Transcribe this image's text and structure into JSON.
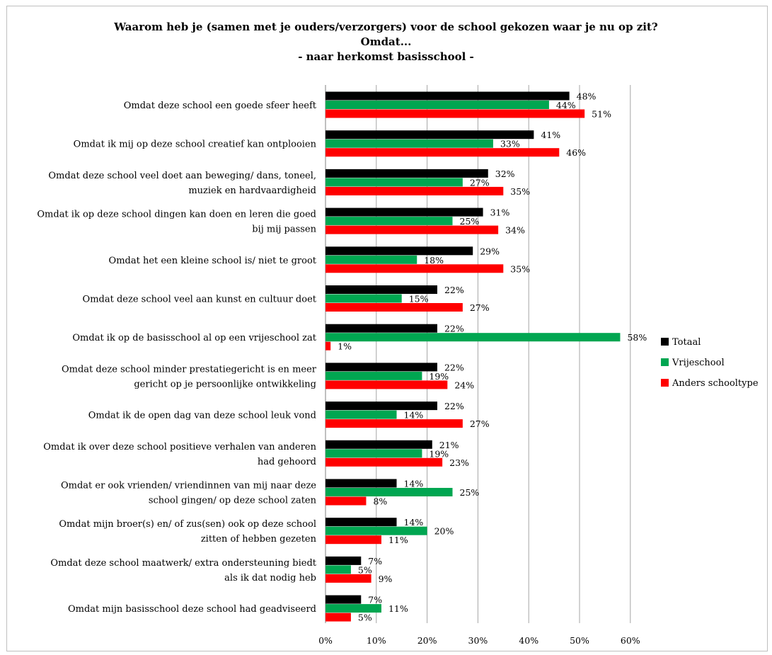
{
  "chart_data": {
    "type": "bar",
    "orientation": "horizontal",
    "title": "Waarom heb je (samen met je ouders/verzorgers) voor de school gekozen waar je nu op zit?",
    "subtitle": [
      "Omdat...",
      "- naar herkomst basisschool -"
    ],
    "categories": [
      "Omdat deze school een goede sfeer heeft",
      "Omdat ik mij op deze school creatief kan ontplooien",
      "Omdat deze school veel doet aan beweging/ dans, toneel, muziek en hardvaardigheid",
      "Omdat ik op deze school dingen kan doen en leren die goed bij mij passen",
      "Omdat het een kleine school is/ niet te groot",
      "Omdat deze school veel aan kunst en cultuur doet",
      "Omdat ik op de basisschool al op een vrijeschool zat",
      "Omdat deze school minder prestatiegericht is en meer gericht op je persoonlijke ontwikkeling",
      "Omdat ik de open dag van deze school leuk vond",
      "Omdat ik over deze school positieve verhalen van anderen had gehoord",
      "Omdat er ook vrienden/ vriendinnen van mij naar deze school gingen/ op deze school zaten",
      "Omdat mijn broer(s) en/ of zus(sen) ook op deze school zitten of hebben gezeten",
      "Omdat deze school maatwerk/ extra ondersteuning biedt als ik dat nodig heb",
      "Omdat mijn basisschool deze school had geadviseerd"
    ],
    "category_lines": [
      [
        "Omdat deze school een goede sfeer heeft"
      ],
      [
        "Omdat ik mij op deze school creatief kan ontplooien"
      ],
      [
        "Omdat deze school veel doet aan beweging/ dans, toneel,",
        "muziek en hardvaardigheid"
      ],
      [
        "Omdat ik op deze school dingen kan doen en leren die goed",
        "bij mij passen"
      ],
      [
        "Omdat het een kleine school is/ niet te groot"
      ],
      [
        "Omdat deze school veel aan kunst en cultuur doet"
      ],
      [
        "Omdat ik op de basisschool al op een vrijeschool zat"
      ],
      [
        "Omdat deze school minder prestatiegericht is en meer",
        "gericht op je persoonlijke ontwikkeling"
      ],
      [
        "Omdat ik de open dag van deze school leuk vond"
      ],
      [
        "Omdat ik over deze school positieve verhalen van anderen",
        "had gehoord"
      ],
      [
        "Omdat er ook vrienden/ vriendinnen van mij naar deze",
        "school gingen/ op deze school zaten"
      ],
      [
        "Omdat mijn broer(s) en/ of zus(sen) ook op deze school",
        "zitten of hebben gezeten"
      ],
      [
        "Omdat deze school maatwerk/ extra ondersteuning biedt",
        "als ik dat nodig heb"
      ],
      [
        "Omdat mijn basisschool deze school had geadviseerd"
      ]
    ],
    "series": [
      {
        "name": "Totaal",
        "color": "#000000",
        "values": [
          48,
          41,
          32,
          31,
          29,
          22,
          22,
          22,
          22,
          21,
          14,
          14,
          7,
          7
        ]
      },
      {
        "name": "Vrijeschool",
        "color": "#00a651",
        "values": [
          44,
          33,
          27,
          25,
          18,
          15,
          58,
          19,
          14,
          19,
          25,
          20,
          5,
          11
        ]
      },
      {
        "name": "Anders schooltype",
        "color": "#ff0000",
        "values": [
          51,
          46,
          35,
          34,
          35,
          27,
          1,
          24,
          27,
          23,
          8,
          11,
          9,
          5
        ]
      }
    ],
    "value_suffix": "%",
    "xlim": [
      0,
      60
    ],
    "xticks": [
      "0%",
      "10%",
      "20%",
      "30%",
      "40%",
      "50%",
      "60%"
    ],
    "grid": true,
    "legend": "right"
  }
}
